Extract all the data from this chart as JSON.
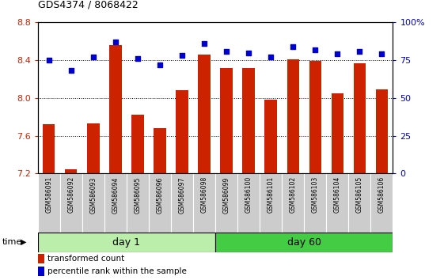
{
  "title": "GDS4374 / 8068422",
  "samples": [
    "GSM586091",
    "GSM586092",
    "GSM586093",
    "GSM586094",
    "GSM586095",
    "GSM586096",
    "GSM586097",
    "GSM586098",
    "GSM586099",
    "GSM586100",
    "GSM586101",
    "GSM586102",
    "GSM586103",
    "GSM586104",
    "GSM586105",
    "GSM586106"
  ],
  "bar_values": [
    7.72,
    7.25,
    7.73,
    8.56,
    7.82,
    7.68,
    8.08,
    8.46,
    8.32,
    8.32,
    7.98,
    8.41,
    8.39,
    8.05,
    8.37,
    8.09
  ],
  "dot_values": [
    75,
    68,
    77,
    87,
    76,
    72,
    78,
    86,
    81,
    80,
    77,
    84,
    82,
    79,
    81,
    79
  ],
  "bar_color": "#cc2200",
  "dot_color": "#0000cc",
  "ymin": 7.2,
  "ymax": 8.8,
  "y2min": 0,
  "y2max": 100,
  "yticks": [
    7.2,
    7.6,
    8.0,
    8.4,
    8.8
  ],
  "y2ticks": [
    0,
    25,
    50,
    75,
    100
  ],
  "y2ticklabels": [
    "0",
    "25",
    "50",
    "75",
    "100%"
  ],
  "day1_label": "day 1",
  "day60_label": "day 60",
  "day1_count": 8,
  "day60_count": 8,
  "time_label": "time",
  "legend_bar_label": "transformed count",
  "legend_dot_label": "percentile rank within the sample",
  "background_color": "#ffffff",
  "tick_label_color_left": "#cc2200",
  "tick_label_color_right": "#0000cc",
  "day1_color": "#bbeeaa",
  "day60_color": "#44cc44",
  "xticklabel_bg": "#cccccc"
}
